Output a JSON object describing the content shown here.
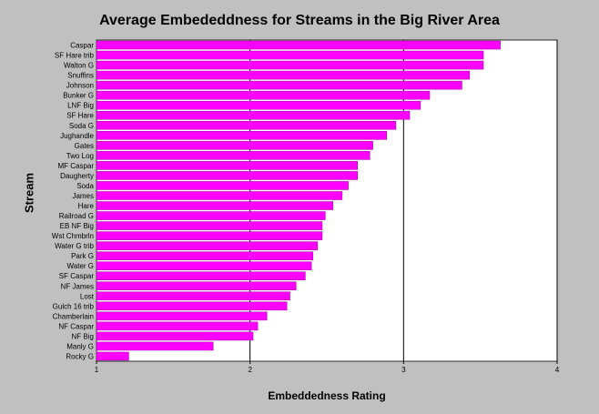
{
  "chart_data": {
    "type": "bar",
    "orientation": "horizontal",
    "title": "Average Embededdness for Streams in the Big River Area",
    "xlabel": "Embeddedness Rating",
    "ylabel": "Stream",
    "xlim": [
      1,
      4
    ],
    "xticks": [
      "1",
      "2",
      "3",
      "4"
    ],
    "grid": "vertical lines at 2, 3, 4",
    "bar_color": "#ff00ff",
    "categories": [
      "Caspar",
      "SF Hare trib",
      "Walton G",
      "Snuffins",
      "Johnson",
      "Bunker G",
      "LNF Big",
      "SF Hare",
      "Soda G",
      "Jughandle",
      "Gates",
      "Two Log",
      "MF Caspar",
      "Daugherty",
      "Soda",
      "James",
      "Hare",
      "Railroad G",
      "EB NF Big",
      "Wst Chmbrln",
      "Water G trib",
      "Park G",
      "Water G",
      "SF Caspar",
      "NF James",
      "Lost",
      "Gulch 16 trib",
      "Chamberlain",
      "NF Caspar",
      "NF Big",
      "Manly G",
      "Rocky G"
    ],
    "values": [
      3.63,
      3.52,
      3.52,
      3.43,
      3.38,
      3.17,
      3.11,
      3.04,
      2.95,
      2.89,
      2.8,
      2.78,
      2.7,
      2.7,
      2.64,
      2.6,
      2.54,
      2.49,
      2.47,
      2.47,
      2.44,
      2.41,
      2.4,
      2.36,
      2.3,
      2.26,
      2.24,
      2.11,
      2.05,
      2.02,
      1.76,
      1.21
    ]
  },
  "colors": {
    "background": "#c0c0c0",
    "plot_background": "#ffffff",
    "bar": "#ff00ff",
    "bar_edge": "#a000a0"
  }
}
